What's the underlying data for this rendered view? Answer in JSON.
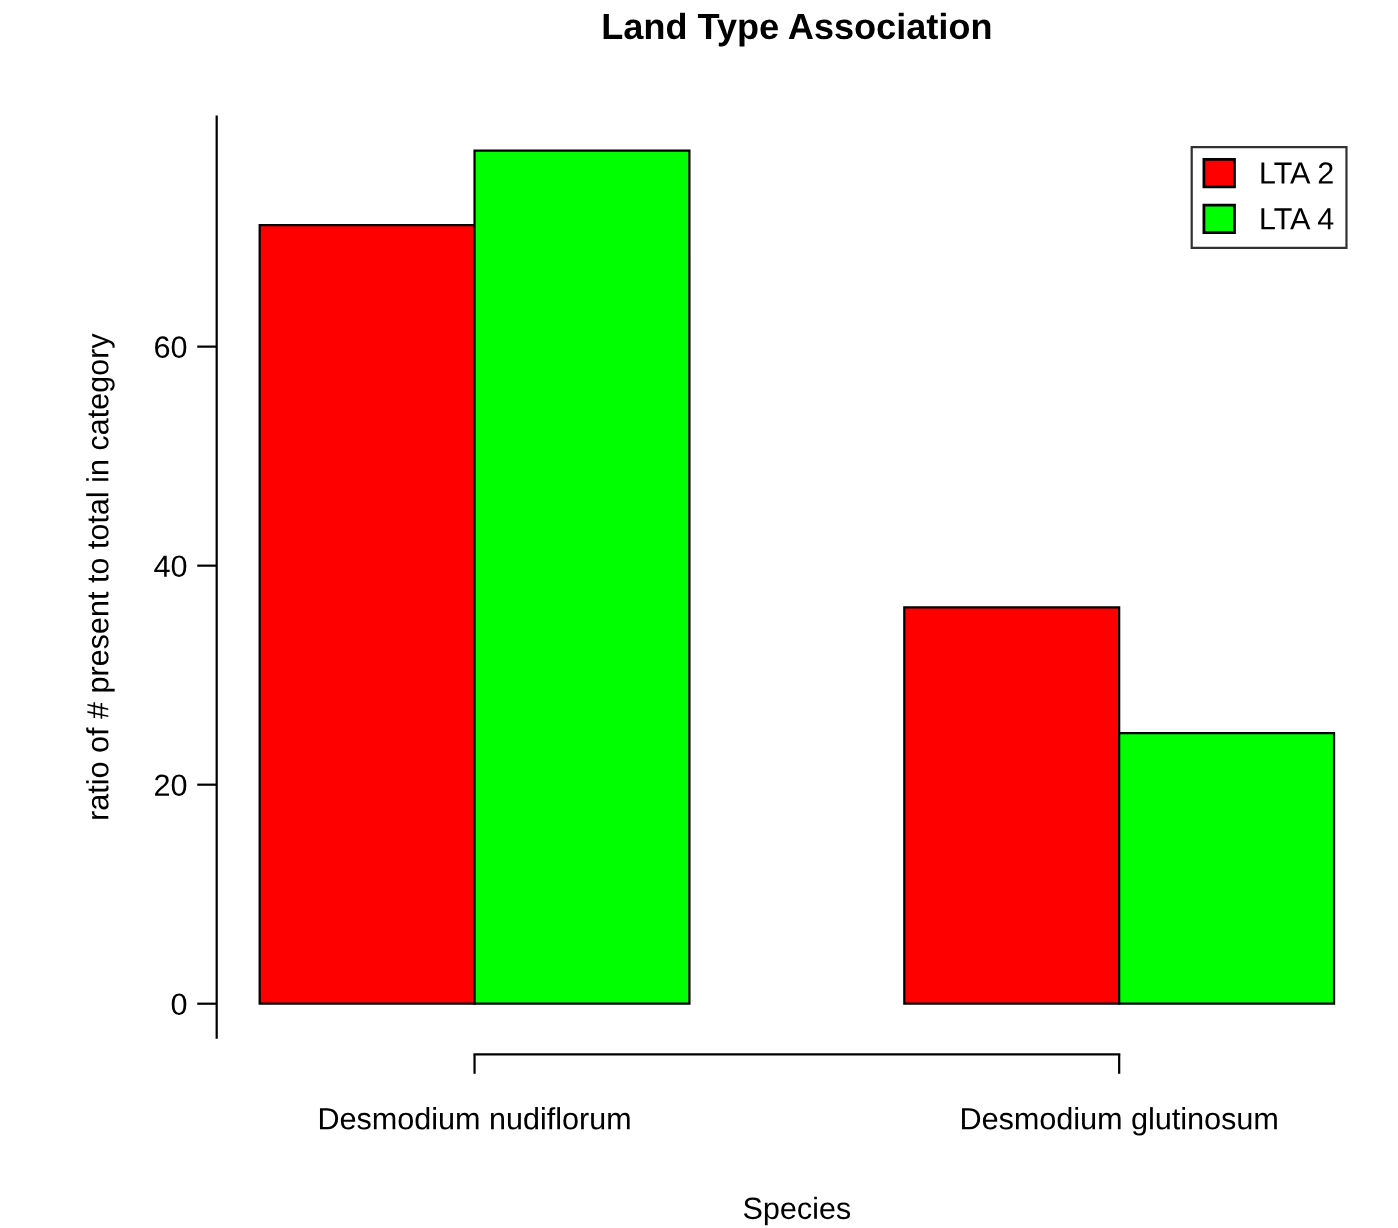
{
  "chart_data": {
    "type": "bar",
    "title": "Land Type Association",
    "xlabel": "Species",
    "ylabel": "ratio of # present to total in category",
    "categories": [
      "Desmodium nudiflorum",
      "Desmodium glutinosum"
    ],
    "series": [
      {
        "name": "LTA 2",
        "color": "#ff0000",
        "values": [
          71.1,
          36.2
        ]
      },
      {
        "name": "LTA 4",
        "color": "#00ff00",
        "values": [
          77.9,
          24.7
        ]
      }
    ],
    "ylim": [
      -3.1,
      81
    ],
    "yticks": [
      0,
      20,
      40,
      60
    ],
    "grid": false,
    "legend": "top right"
  }
}
